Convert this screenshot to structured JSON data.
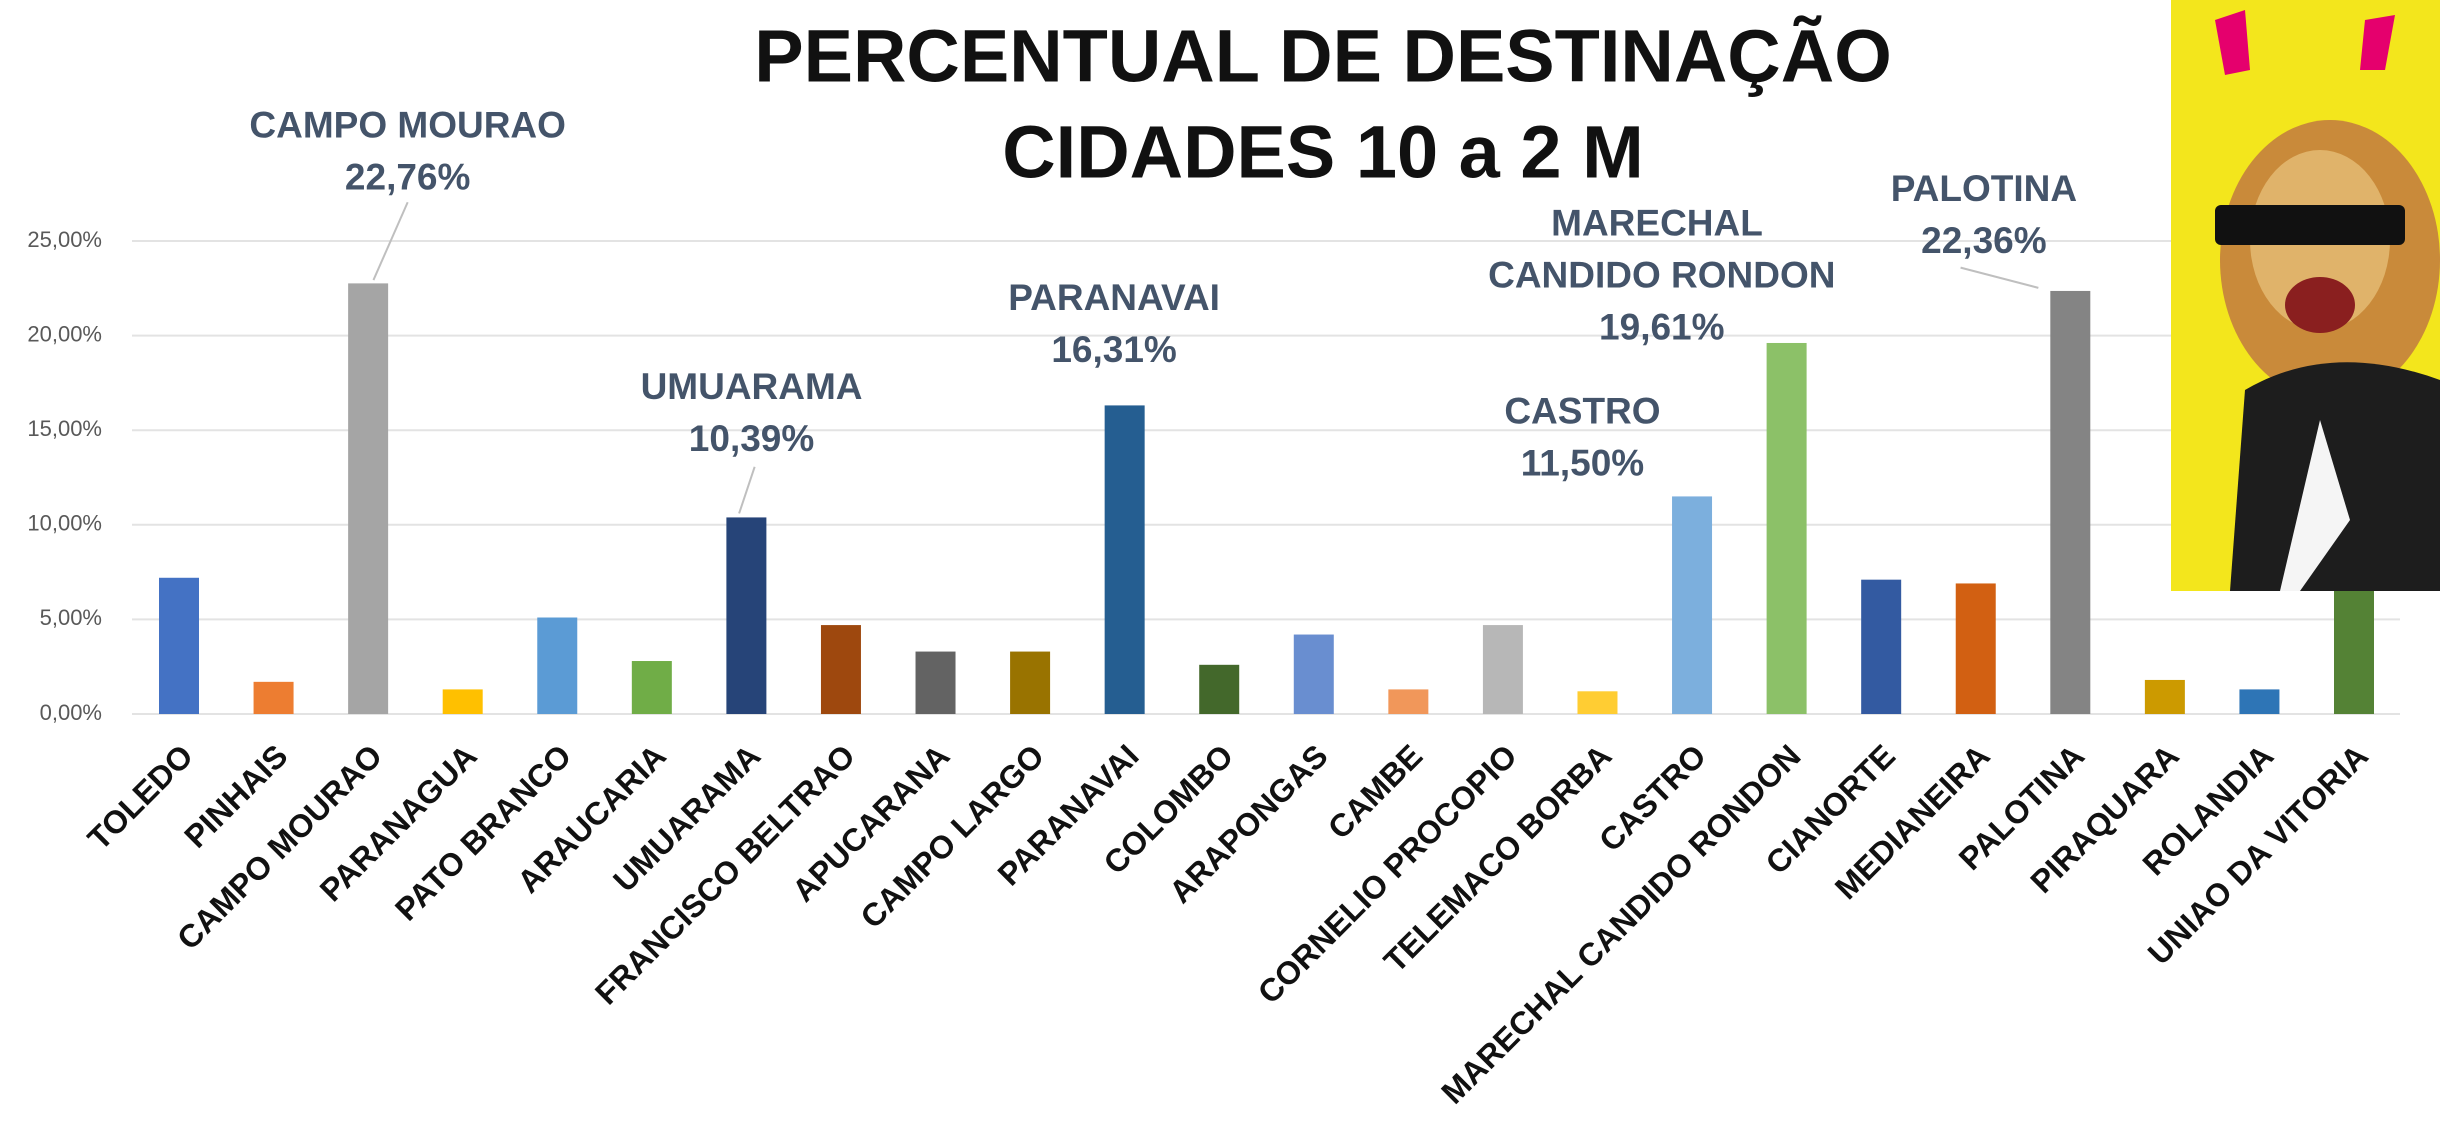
{
  "chart_data": {
    "type": "bar",
    "title": "PERCENTUAL DE DESTINAÇÃO",
    "subtitle": "CIDADES 10 a 2 M",
    "categories": [
      "TOLEDO",
      "PINHAIS",
      "CAMPO MOURAO",
      "PARANAGUA",
      "PATO BRANCO",
      "ARAUCARIA",
      "UMUARAMA",
      "FRANCISCO BELTRAO",
      "APUCARANA",
      "CAMPO LARGO",
      "PARANAVAI",
      "COLOMBO",
      "ARAPONGAS",
      "CAMBE",
      "CORNELIO PROCOPIO",
      "TELEMACO BORBA",
      "CASTRO",
      "MARECHAL CANDIDO RONDON",
      "CIANORTE",
      "MEDIANEIRA",
      "PALOTINA",
      "PIRAQUARA",
      "ROLANDIA",
      "UNIAO DA VITORIA"
    ],
    "values": [
      7.2,
      1.7,
      22.76,
      1.3,
      5.1,
      2.8,
      10.39,
      4.7,
      3.3,
      3.3,
      16.31,
      2.6,
      4.2,
      1.3,
      4.7,
      1.2,
      11.5,
      19.61,
      7.1,
      6.9,
      22.36,
      1.8,
      1.3,
      7.5
    ],
    "value_labels": [
      null,
      null,
      "22,76%",
      null,
      null,
      null,
      "10,39%",
      null,
      null,
      null,
      "16,31%",
      null,
      null,
      null,
      null,
      null,
      "11,50%",
      "19,61%",
      null,
      null,
      "22,36%",
      null,
      null,
      null
    ],
    "colors": [
      "#4472c4",
      "#ed7d31",
      "#a5a5a5",
      "#ffc000",
      "#5b9bd5",
      "#70ad47",
      "#264478",
      "#9e480e",
      "#636363",
      "#997300",
      "#255e91",
      "#43682b",
      "#698ed0",
      "#f1975a",
      "#b7b7b7",
      "#ffcd33",
      "#7cafdd",
      "#8cc168",
      "#335aa1",
      "#d26012",
      "#848484",
      "#cc9a00",
      "#2e75b6",
      "#548235"
    ],
    "ylim": [
      0,
      25
    ],
    "yticks": [
      {
        "value": 0,
        "label": "0,00%"
      },
      {
        "value": 5,
        "label": "5,00%"
      },
      {
        "value": 10,
        "label": "10,00%"
      },
      {
        "value": 15,
        "label": "15,00%"
      },
      {
        "value": 20,
        "label": "20,00%"
      },
      {
        "value": 25,
        "label": "25,00%"
      }
    ],
    "grid": true
  }
}
